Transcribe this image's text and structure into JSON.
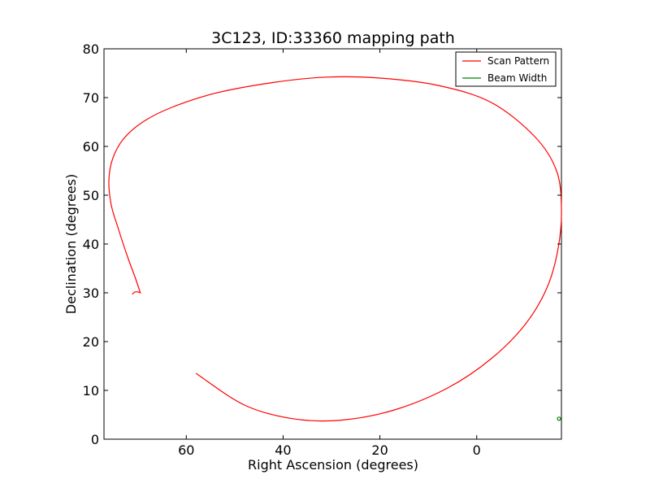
{
  "chart_data": {
    "type": "line",
    "title": "3C123, ID:33360 mapping path",
    "xlabel": "Right Ascension (degrees)",
    "ylabel": "Declination (degrees)",
    "xlim": [
      77,
      -17.5
    ],
    "ylim": [
      0,
      80
    ],
    "x_ticks": [
      60,
      40,
      20,
      0
    ],
    "x_tick_labels": [
      "60",
      "40",
      "20",
      "0"
    ],
    "y_ticks": [
      0,
      10,
      20,
      30,
      40,
      50,
      60,
      70,
      80
    ],
    "y_tick_labels": [
      "0",
      "10",
      "20",
      "30",
      "40",
      "50",
      "60",
      "70",
      "80"
    ],
    "grid": false,
    "legend_position": "top-right",
    "series": [
      {
        "name": "Scan Pattern",
        "color": "#ff0000",
        "x": [
          71.2,
          70.6,
          70.0,
          69.5,
          70.5,
          72.0,
          74.0,
          75.5,
          76.0,
          75.2,
          73.0,
          69.0,
          63.0,
          54.0,
          42.0,
          31.0,
          20.0,
          8.0,
          -3.0,
          -12.0,
          -16.5,
          -17.5,
          -16.8,
          -14.5,
          -10.0,
          -3.0,
          6.0,
          17.0,
          28.0,
          38.0,
          48.0,
          58.0
        ],
        "y": [
          29.7,
          30.2,
          30.2,
          30.0,
          33.0,
          37.0,
          43.0,
          48.0,
          53.0,
          57.5,
          61.5,
          65.0,
          68.0,
          70.9,
          73.1,
          74.2,
          74.0,
          72.5,
          69.0,
          62.0,
          55.0,
          47.0,
          39.0,
          31.0,
          23.5,
          16.5,
          10.5,
          6.0,
          3.9,
          4.2,
          7.0,
          13.5
        ]
      },
      {
        "name": "Beam Width",
        "color": "#008000",
        "center": [
          -17.0,
          4.2
        ]
      }
    ]
  }
}
